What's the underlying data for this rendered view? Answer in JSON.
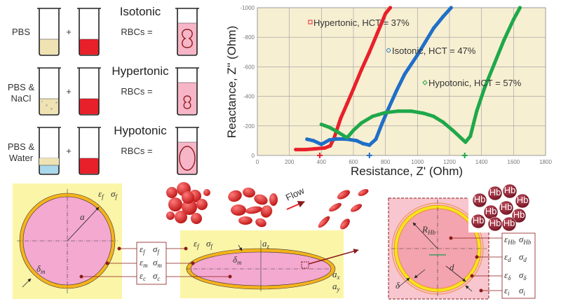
{
  "tubes": {
    "rows": [
      {
        "solution": [
          "PBS"
        ],
        "title": "Isotonic",
        "rbc_label": "RBCs =",
        "solution_color": "#efe3b4",
        "cell_shape": "biconcave"
      },
      {
        "solution": [
          "PBS &",
          "NaCl"
        ],
        "title": "Hypertonic",
        "rbc_label": "RBCs =",
        "solution_color": "#efe3b4",
        "cell_shape": "shrunken"
      },
      {
        "solution": [
          "PBS &",
          "Water"
        ],
        "title": "Hypotonic",
        "rbc_label": "RBCs =",
        "solution_color": "#a8d8ea",
        "cell_shape": "swollen"
      }
    ],
    "plus": "+",
    "blood_color": "#e8202a",
    "result_color": "#f7b6c8"
  },
  "chart_data": {
    "type": "scatter",
    "xlabel": "Resistance, Z' (Ohm)",
    "ylabel": "Reactance, Z'' (Ohm)",
    "xlim": [
      0,
      1800
    ],
    "ylim": [
      0,
      -1000
    ],
    "x_ticks": [
      "0",
      "200",
      "400",
      "600",
      "800",
      "1000",
      "1200",
      "1400",
      "1600",
      "1800"
    ],
    "y_ticks": [
      "-1000",
      "-800",
      "-600",
      "-400",
      "-200",
      "0"
    ],
    "grid": true,
    "background": "#f7efd2",
    "series": [
      {
        "name": "Hypertonic, HCT = 37%",
        "marker": "square",
        "color": "#e8202a",
        "x_marker": 390,
        "points": [
          [
            240,
            -40
          ],
          [
            300,
            -40
          ],
          [
            360,
            -45
          ],
          [
            420,
            -50
          ],
          [
            455,
            -65
          ],
          [
            480,
            -120
          ],
          [
            520,
            -250
          ],
          [
            560,
            -350
          ],
          [
            600,
            -450
          ],
          [
            650,
            -580
          ],
          [
            700,
            -700
          ],
          [
            750,
            -830
          ],
          [
            800,
            -960
          ],
          [
            830,
            -1000
          ]
        ]
      },
      {
        "name": "Isotonic, HCT = 47%",
        "marker": "circle",
        "color": "#1f6fc8",
        "x_marker": 700,
        "points": [
          [
            310,
            -110
          ],
          [
            350,
            -100
          ],
          [
            400,
            -75
          ],
          [
            450,
            -105
          ],
          [
            500,
            -112
          ],
          [
            560,
            -110
          ],
          [
            620,
            -100
          ],
          [
            660,
            -80
          ],
          [
            700,
            -70
          ],
          [
            740,
            -110
          ],
          [
            780,
            -220
          ],
          [
            820,
            -320
          ],
          [
            870,
            -440
          ],
          [
            920,
            -550
          ],
          [
            1000,
            -680
          ],
          [
            1050,
            -770
          ],
          [
            1100,
            -860
          ],
          [
            1160,
            -940
          ],
          [
            1210,
            -1000
          ]
        ]
      },
      {
        "name": "Hypotonic, HCT = 57%",
        "marker": "diamond",
        "color": "#1fa84a",
        "x_marker": 1295,
        "points": [
          [
            400,
            -210
          ],
          [
            450,
            -190
          ],
          [
            500,
            -160
          ],
          [
            560,
            -120
          ],
          [
            600,
            -170
          ],
          [
            650,
            -220
          ],
          [
            720,
            -265
          ],
          [
            800,
            -290
          ],
          [
            880,
            -300
          ],
          [
            960,
            -300
          ],
          [
            1040,
            -285
          ],
          [
            1100,
            -265
          ],
          [
            1160,
            -225
          ],
          [
            1220,
            -170
          ],
          [
            1270,
            -120
          ],
          [
            1300,
            -90
          ],
          [
            1330,
            -130
          ],
          [
            1370,
            -300
          ],
          [
            1420,
            -460
          ],
          [
            1480,
            -620
          ],
          [
            1540,
            -780
          ],
          [
            1600,
            -920
          ],
          [
            1640,
            -1000
          ]
        ]
      }
    ]
  },
  "models": {
    "sphere": {
      "a": "a",
      "delta_m": {
        "sym": "δ",
        "sub": "m"
      },
      "ext": [
        {
          "sym": "ε",
          "sub": "f"
        },
        {
          "sym": "σ",
          "sub": "f"
        }
      ]
    },
    "params_box": [
      [
        {
          "sym": "ε",
          "sub": "f"
        },
        {
          "sym": "σ",
          "sub": "f"
        }
      ],
      [
        {
          "sym": "ε",
          "sub": "m"
        },
        {
          "sym": "σ",
          "sub": "m"
        }
      ],
      [
        {
          "sym": "ε",
          "sub": "c"
        },
        {
          "sym": "σ",
          "sub": "c"
        }
      ]
    ],
    "ellipsoid": {
      "ext": [
        {
          "sym": "ε",
          "sub": "f"
        },
        {
          "sym": "σ",
          "sub": "f"
        }
      ],
      "az": {
        "sym": "a",
        "sub": "z"
      },
      "ax": {
        "sym": "a",
        "sub": "x"
      },
      "ay": {
        "sym": "a",
        "sub": "y"
      },
      "delta_m": {
        "sym": "δ",
        "sub": "m"
      }
    },
    "flow_label": "Flow",
    "hb": {
      "radius": {
        "sym": "R",
        "sub": "Hb"
      },
      "d": "d",
      "delta": "δ",
      "molecule_label": "Hb",
      "params": [
        [
          {
            "sym": "ε",
            "sub": "Hb"
          },
          {
            "sym": "σ",
            "sub": "Hb"
          }
        ],
        [
          {
            "sym": "ε",
            "sub": "d"
          },
          {
            "sym": "σ",
            "sub": "d"
          }
        ],
        [
          {
            "sym": "ε",
            "sub": "δ"
          },
          {
            "sym": "σ",
            "sub": "δ"
          }
        ],
        [
          {
            "sym": "ε",
            "sub": "i"
          },
          {
            "sym": "σ",
            "sub": "i"
          }
        ]
      ]
    },
    "colors": {
      "panel": "#fbf5a8",
      "cytoplasm": "#f4a9d0",
      "membrane": "#f5b31c",
      "connector": "#8b1a1a",
      "hb_panel": "#f7c6cf"
    }
  }
}
